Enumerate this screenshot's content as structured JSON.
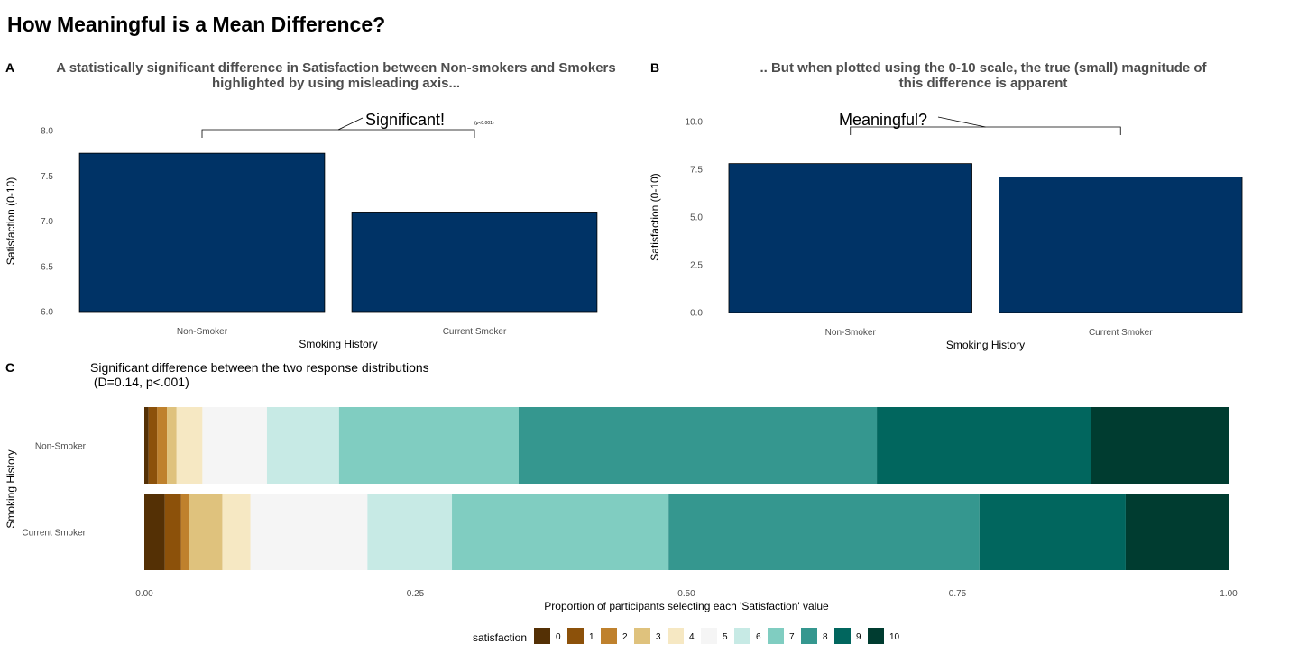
{
  "page_title": "How Meaningful is a Mean Difference?",
  "panels": {
    "a": {
      "tag": "A",
      "title_line1": "A statistically significant difference in Satisfaction between Non-smokers and Smokers",
      "title_line2": "highlighted by using misleading axis..."
    },
    "b": {
      "tag": "B",
      "title_line1": ".. But when plotted using the 0-10 scale, the true (small) magnitude of",
      "title_line2": "this difference is apparent"
    },
    "c": {
      "tag": "C",
      "title_line1": "Significant difference between the two response distributions",
      "title_line2": " (D=0.14, p<.001)"
    }
  },
  "chart_data": [
    {
      "type": "bar",
      "panel": "A",
      "categories": [
        "Non-Smoker",
        "Current Smoker"
      ],
      "values": [
        7.75,
        7.1
      ],
      "xlabel": "Smoking History",
      "ylabel": "Satisfaction (0-10)",
      "ylim": [
        6.0,
        8.0
      ],
      "yticks": [
        "6.0",
        "6.5",
        "7.0",
        "7.5",
        "8.0"
      ],
      "bar_color": "#003366",
      "annotation": {
        "text": "Significant!",
        "subtext": "(p<0.001)"
      },
      "grid": false
    },
    {
      "type": "bar",
      "panel": "B",
      "categories": [
        "Non-Smoker",
        "Current Smoker"
      ],
      "values": [
        7.8,
        7.1
      ],
      "xlabel": "Smoking History",
      "ylabel": "Satisfaction (0-10)",
      "ylim": [
        0,
        10
      ],
      "yticks": [
        "0.0",
        "2.5",
        "5.0",
        "7.5",
        "10.0"
      ],
      "bar_color": "#003366",
      "annotation": {
        "text": "Meaningful?"
      },
      "grid": false
    },
    {
      "type": "bar",
      "orientation": "horizontal",
      "stacked": "proportion",
      "panel": "C",
      "categories": [
        "Non-Smoker",
        "Current Smoker"
      ],
      "xlabel": "Proportion of participants selecting each 'Satisfaction' value",
      "ylabel": "Smoking History",
      "xlim": [
        0,
        1
      ],
      "xticks": [
        "0.00",
        "0.25",
        "0.50",
        "0.75",
        "1.00"
      ],
      "legend_title": "satisfaction",
      "legend_position": "bottom",
      "series": [
        {
          "name": "0",
          "color": "#543005",
          "values": [
            0.004,
            0.019
          ]
        },
        {
          "name": "1",
          "color": "#8c510a",
          "values": [
            0.008,
            0.015
          ]
        },
        {
          "name": "2",
          "color": "#bf812d",
          "values": [
            0.009,
            0.007
          ]
        },
        {
          "name": "3",
          "color": "#dfc27d",
          "values": [
            0.009,
            0.031
          ]
        },
        {
          "name": "4",
          "color": "#f6e8c3",
          "values": [
            0.024,
            0.026
          ]
        },
        {
          "name": "5",
          "color": "#f5f5f5",
          "values": [
            0.06,
            0.108
          ]
        },
        {
          "name": "6",
          "color": "#c7eae5",
          "values": [
            0.067,
            0.078
          ]
        },
        {
          "name": "7",
          "color": "#80cdc1",
          "values": [
            0.167,
            0.2
          ]
        },
        {
          "name": "8",
          "color": "#35978f",
          "values": [
            0.333,
            0.287
          ]
        },
        {
          "name": "9",
          "color": "#01665e",
          "values": [
            0.199,
            0.135
          ]
        },
        {
          "name": "10",
          "color": "#003c30",
          "values": [
            0.128,
            0.095
          ]
        }
      ]
    }
  ]
}
